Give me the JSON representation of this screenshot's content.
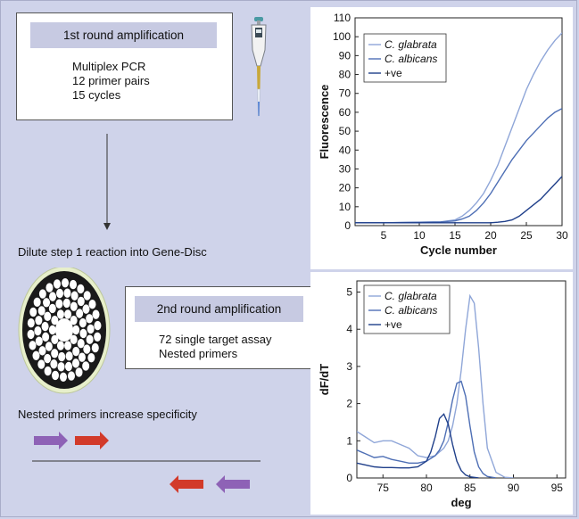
{
  "round1": {
    "title": "1st round amplification",
    "lines": [
      "Multiplex PCR",
      "12 primer pairs",
      "15 cycles"
    ]
  },
  "dilute_text": "Dilute step 1 reaction into Gene-Disc",
  "round2": {
    "title": "2nd round amplification",
    "lines": [
      "72 single target assay",
      "Nested primers"
    ]
  },
  "nested_text": "Nested primers increase specificity",
  "colors": {
    "background": "#cfd3ea",
    "box_title_bg": "#c7cae2",
    "primer_purple": "#8e62b6",
    "primer_red": "#d23a2a",
    "glabrata": "#8fa6d8",
    "albicans": "#4e6fb5",
    "positive": "#1f3f8a"
  },
  "chart_data": [
    {
      "type": "line",
      "title": "",
      "xlabel": "Cycle number",
      "ylabel": "Fluorescence",
      "xlim": [
        1,
        30
      ],
      "ylim": [
        0,
        110
      ],
      "xticks": [
        5,
        10,
        15,
        20,
        25,
        30
      ],
      "yticks": [
        0,
        10,
        20,
        30,
        40,
        50,
        60,
        70,
        80,
        90,
        100,
        110
      ],
      "legend_position": "top-left",
      "series": [
        {
          "name": "C. glabrata",
          "color_key": "glabrata",
          "x": [
            1,
            5,
            10,
            13,
            15,
            16,
            17,
            18,
            19,
            20,
            21,
            22,
            23,
            24,
            25,
            26,
            27,
            28,
            29,
            30
          ],
          "y": [
            1.5,
            1.5,
            1.8,
            2,
            3,
            5,
            8,
            12,
            17,
            24,
            32,
            42,
            52,
            62,
            72,
            80,
            87,
            93,
            98,
            102
          ]
        },
        {
          "name": "C. albicans",
          "color_key": "albicans",
          "x": [
            1,
            5,
            10,
            13,
            15,
            16,
            17,
            18,
            19,
            20,
            21,
            22,
            23,
            24,
            25,
            26,
            27,
            28,
            29,
            30
          ],
          "y": [
            1.5,
            1.5,
            1.8,
            2,
            2.5,
            3.5,
            5,
            8,
            12,
            17,
            23,
            29,
            35,
            40,
            45,
            49,
            53,
            57,
            60,
            62
          ]
        },
        {
          "name": "+ve",
          "color_key": "positive",
          "x": [
            1,
            5,
            10,
            15,
            20,
            21,
            22,
            23,
            24,
            25,
            26,
            27,
            28,
            29,
            30
          ],
          "y": [
            1.5,
            1.5,
            1.5,
            1.5,
            1.5,
            1.8,
            2.2,
            3,
            5,
            8,
            11,
            14,
            18,
            22,
            26
          ]
        }
      ]
    },
    {
      "type": "line",
      "title": "",
      "xlabel": "deg",
      "ylabel": "dF/dT",
      "xlim": [
        72,
        96
      ],
      "ylim": [
        0,
        5.3
      ],
      "xticks": [
        75,
        80,
        85,
        90,
        95
      ],
      "yticks": [
        0,
        1,
        2,
        3,
        4,
        5
      ],
      "legend_position": "top-left",
      "series": [
        {
          "name": "C. glabrata",
          "color_key": "glabrata",
          "x": [
            72,
            73,
            74,
            75,
            76,
            77,
            78,
            79,
            80,
            81,
            82,
            82.5,
            83,
            83.5,
            84,
            84.5,
            85,
            85.5,
            86,
            86.5,
            87,
            88,
            89,
            90
          ],
          "y": [
            1.25,
            1.1,
            0.95,
            1.0,
            1.0,
            0.9,
            0.8,
            0.6,
            0.55,
            0.6,
            0.8,
            1.0,
            1.4,
            2.0,
            2.9,
            4.0,
            4.9,
            4.7,
            3.5,
            2.0,
            0.8,
            0.15,
            0.02,
            0
          ]
        },
        {
          "name": "C. albicans",
          "color_key": "albicans",
          "x": [
            72,
            73,
            74,
            75,
            76,
            77,
            78,
            79,
            80,
            81,
            81.5,
            82,
            82.5,
            83,
            83.5,
            84,
            84.5,
            85,
            85.5,
            86,
            86.5,
            87,
            88
          ],
          "y": [
            0.75,
            0.65,
            0.55,
            0.58,
            0.5,
            0.45,
            0.4,
            0.4,
            0.45,
            0.6,
            0.75,
            1.0,
            1.5,
            2.1,
            2.55,
            2.6,
            2.2,
            1.4,
            0.7,
            0.3,
            0.12,
            0.04,
            0
          ]
        },
        {
          "name": "+ve",
          "color_key": "positive",
          "x": [
            72,
            73,
            74,
            75,
            76,
            77,
            78,
            79,
            80,
            80.5,
            81,
            81.5,
            82,
            82.5,
            83,
            83.5,
            84,
            84.5,
            85,
            86
          ],
          "y": [
            0.4,
            0.35,
            0.3,
            0.28,
            0.28,
            0.27,
            0.27,
            0.3,
            0.45,
            0.7,
            1.1,
            1.6,
            1.72,
            1.45,
            0.9,
            0.45,
            0.2,
            0.08,
            0.03,
            0
          ]
        }
      ]
    }
  ]
}
